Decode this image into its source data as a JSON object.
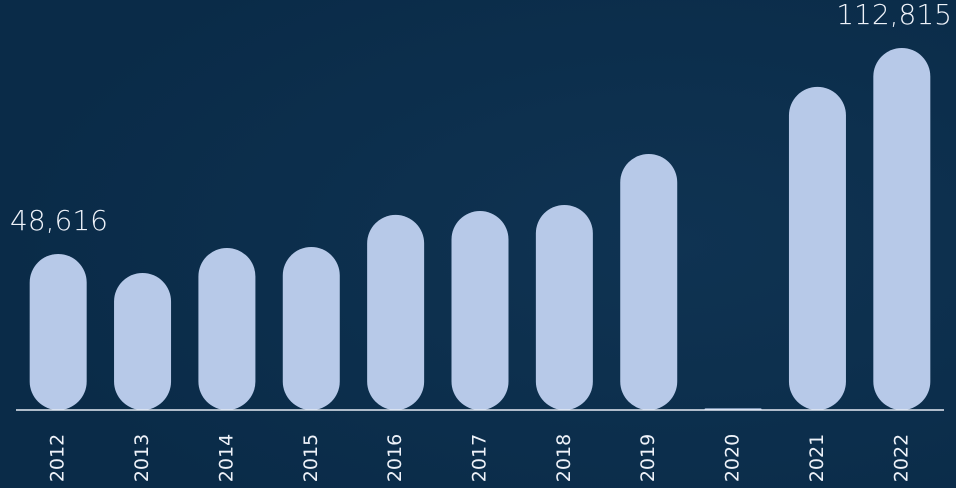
{
  "chart_data": {
    "type": "bar",
    "categories": [
      "2012",
      "2013",
      "2014",
      "2015",
      "2016",
      "2017",
      "2018",
      "2019",
      "2020",
      "2021",
      "2022"
    ],
    "values": [
      48616,
      42700,
      50500,
      50800,
      60800,
      62000,
      63900,
      79800,
      500,
      100700,
      112815
    ],
    "value_labels": [
      "48,616",
      null,
      null,
      null,
      null,
      null,
      null,
      null,
      null,
      null,
      "112,815"
    ],
    "color": "#b7c9e8",
    "ylim": [
      0,
      115000
    ]
  }
}
